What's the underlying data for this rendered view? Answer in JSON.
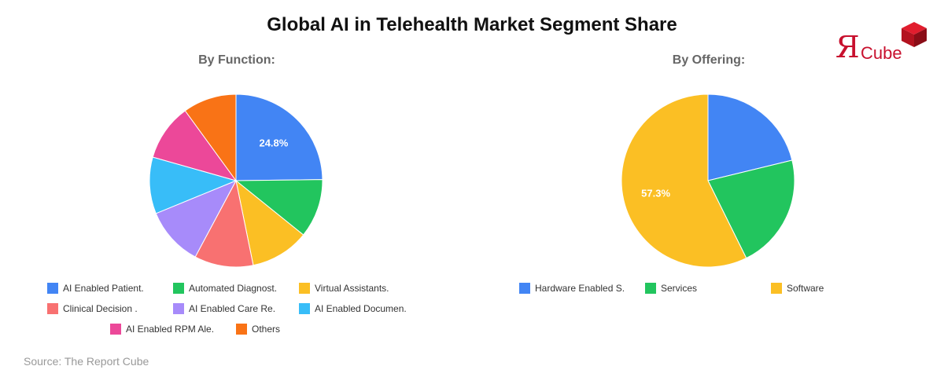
{
  "title": "Global AI in Telehealth Market Segment Share",
  "logo": {
    "mark": "Я",
    "text": "Cube"
  },
  "source": "Source: The Report Cube",
  "chart_data": [
    {
      "type": "pie",
      "title": "By Function:",
      "slices": [
        {
          "label": "AI Enabled Patient.",
          "value": 24.8,
          "color": "#4285f4",
          "show_label": true
        },
        {
          "label": "Automated Diagnost.",
          "value": 11.0,
          "color": "#22c55e"
        },
        {
          "label": "Virtual Assistants.",
          "value": 11.0,
          "color": "#fbbf24"
        },
        {
          "label": "Clinical Decision .",
          "value": 11.0,
          "color": "#f87171"
        },
        {
          "label": "AI Enabled Care Re.",
          "value": 11.0,
          "color": "#a78bfa"
        },
        {
          "label": "AI Enabled Documen.",
          "value": 10.6,
          "color": "#38bdf8"
        },
        {
          "label": "AI Enabled RPM Ale.",
          "value": 10.6,
          "color": "#ec4899"
        },
        {
          "label": "Others",
          "value": 10.0,
          "color": "#f97316"
        }
      ]
    },
    {
      "type": "pie",
      "title": "By Offering:",
      "slices": [
        {
          "label": "Hardware Enabled S.",
          "value": 21.2,
          "color": "#4285f4"
        },
        {
          "label": "Services",
          "value": 21.5,
          "color": "#22c55e"
        },
        {
          "label": "Software",
          "value": 57.3,
          "color": "#fbbf24",
          "show_label": true
        }
      ]
    }
  ]
}
